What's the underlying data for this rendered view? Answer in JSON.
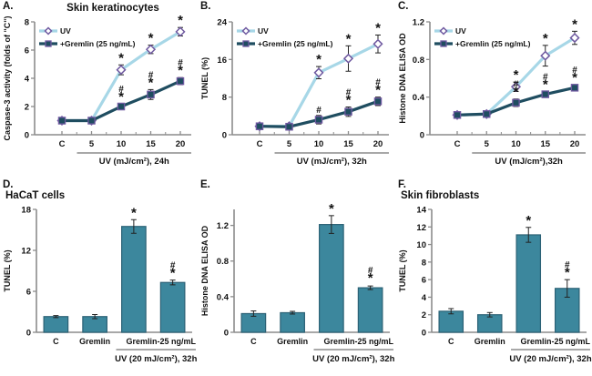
{
  "colors": {
    "background": "#ffffff",
    "axis": "#8c8c8c",
    "text": "#111111",
    "error_bar": "#222222",
    "uv_line": "#a7d7e7",
    "gremlin_line": "#1f4d60",
    "marker_stroke": "#6f59a0",
    "marker_fill_uv": "#ffffff",
    "bar_fill": "#3c879d",
    "bar_border": "#2b6175"
  },
  "chart_data": [
    {
      "panel": "A.",
      "title": "Skin keratinocytes",
      "type": "line",
      "ylabel": "Caspase-3 activity (folds of \"C\")",
      "xlabel_group": "UV (mJ/cm²), 24h",
      "categories": [
        "C",
        "5",
        "10",
        "15",
        "20"
      ],
      "ylim": [
        0,
        8
      ],
      "yticks": [
        0,
        2,
        4,
        6,
        8
      ],
      "legend_position": "top-left",
      "series": [
        {
          "name": "UV",
          "marker": "diamond",
          "color": "#a7d7e7",
          "values": [
            1.0,
            1.0,
            4.6,
            6.05,
            7.3
          ],
          "errors": [
            0.15,
            0.1,
            0.35,
            0.3,
            0.3
          ],
          "annotations": [
            "",
            "",
            "*",
            "*",
            "*"
          ]
        },
        {
          "name": "+Gremlin (25 ng/mL)",
          "marker": "square",
          "color": "#1f4d60",
          "values": [
            1.0,
            1.0,
            2.0,
            2.85,
            3.8
          ],
          "errors": [
            0.1,
            0.1,
            0.2,
            0.35,
            0.25
          ],
          "annotations": [
            "",
            "",
            "#*",
            "#*",
            "#*"
          ]
        }
      ]
    },
    {
      "panel": "B.",
      "title": "",
      "type": "line",
      "ylabel": "TUNEL (%)",
      "xlabel_group": "UV (mJ/cm²), 32h",
      "categories": [
        "C",
        "5",
        "10",
        "15",
        "20"
      ],
      "ylim": [
        0,
        24
      ],
      "yticks": [
        0,
        8,
        16,
        24
      ],
      "legend_position": "top-left",
      "series": [
        {
          "name": "UV",
          "marker": "diamond",
          "color": "#a7d7e7",
          "values": [
            1.8,
            1.8,
            13.2,
            16.2,
            19.3
          ],
          "errors": [
            0.3,
            0.3,
            1.3,
            2.7,
            1.9
          ],
          "annotations": [
            "",
            "",
            "*",
            "*",
            "*"
          ]
        },
        {
          "name": "+Gremlin (25 ng/mL)",
          "marker": "square",
          "color": "#1f4d60",
          "values": [
            1.8,
            1.7,
            3.2,
            4.9,
            7.1
          ],
          "errors": [
            0.3,
            0.3,
            0.9,
            1.0,
            0.9
          ],
          "annotations": [
            "",
            "",
            "#",
            "#*",
            "#*"
          ]
        }
      ]
    },
    {
      "panel": "C.",
      "title": "",
      "type": "line",
      "ylabel": "Histone DNA ELISA OD",
      "xlabel_group": "UV (mJ/cm²),32h",
      "categories": [
        "C",
        "5",
        "10",
        "15",
        "20"
      ],
      "ylim": [
        0,
        1.2
      ],
      "yticks": [
        0,
        0.4,
        0.8,
        1.2
      ],
      "legend_position": "top-left",
      "series": [
        {
          "name": "UV",
          "marker": "diamond",
          "color": "#a7d7e7",
          "values": [
            0.21,
            0.22,
            0.51,
            0.84,
            1.03
          ],
          "errors": [
            0.02,
            0.02,
            0.05,
            0.11,
            0.07
          ],
          "annotations": [
            "",
            "",
            "*",
            "*",
            "*"
          ]
        },
        {
          "name": "+Gremlin (25 ng/mL)",
          "marker": "square",
          "color": "#1f4d60",
          "values": [
            0.21,
            0.22,
            0.34,
            0.43,
            0.5
          ],
          "errors": [
            0.02,
            0.02,
            0.04,
            0.03,
            0.03
          ],
          "annotations": [
            "",
            "",
            "#*",
            "#*",
            "#*"
          ]
        }
      ]
    },
    {
      "panel": "D.",
      "title": "HaCaT cells",
      "type": "bar",
      "ylabel": "TUNEL (%)",
      "group_label": "UV (20 mJ/cm²), 32h",
      "xticklabels": [
        "C",
        "Gremlin",
        "",
        "Gremlin-25 ng/mL"
      ],
      "ylim": [
        0,
        18
      ],
      "yticks": [
        0,
        6,
        12,
        18
      ],
      "values": [
        2.3,
        2.3,
        15.5,
        7.3
      ],
      "errors": [
        0.15,
        0.3,
        1.0,
        0.35
      ],
      "annotations": [
        "",
        "",
        "*",
        "#*"
      ]
    },
    {
      "panel": "E.",
      "title": "",
      "type": "bar",
      "ylabel": "Histone DNA ELISA OD",
      "group_label": "UV (20 mJ/cm²), 32h",
      "xticklabels": [
        "C",
        "Gremlin",
        "",
        "Gremlin-25 ng/mL"
      ],
      "ylim": [
        0,
        1.38
      ],
      "yticks": [
        0,
        0.4,
        0.8,
        1.2
      ],
      "values": [
        0.21,
        0.22,
        1.21,
        0.5
      ],
      "errors": [
        0.03,
        0.015,
        0.1,
        0.02
      ],
      "annotations": [
        "",
        "",
        "*",
        "#*"
      ]
    },
    {
      "panel": "F.",
      "title": "Skin fibroblasts",
      "type": "bar",
      "ylabel": "TUNEL (%)",
      "group_label": "UV (20 mJ/cm²), 32h",
      "xticklabels": [
        "C",
        "Gremlin",
        "",
        "Gremlin-25 ng/mL"
      ],
      "ylim": [
        0,
        14
      ],
      "yticks": [
        0,
        2,
        4,
        6,
        8,
        10,
        12,
        14
      ],
      "values": [
        2.4,
        2.0,
        11.1,
        5.0
      ],
      "errors": [
        0.3,
        0.25,
        0.85,
        1.0
      ],
      "annotations": [
        "",
        "",
        "*",
        "#*"
      ]
    }
  ]
}
